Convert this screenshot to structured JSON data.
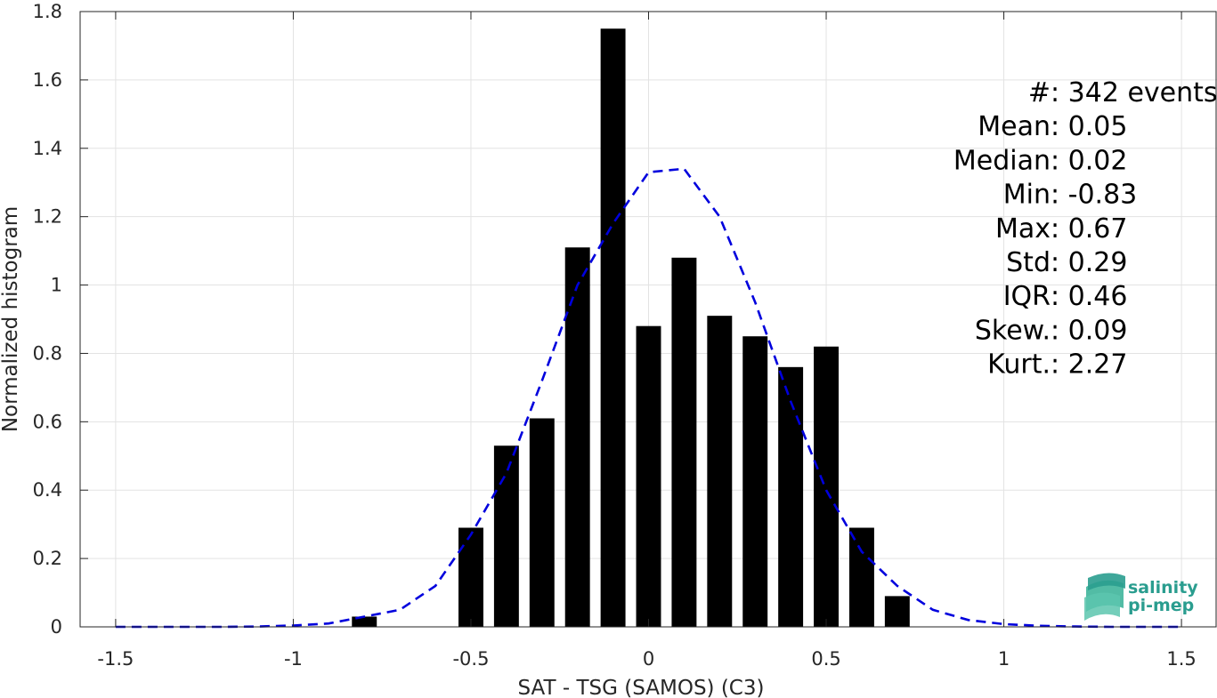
{
  "chart_data": {
    "type": "bar",
    "title": "",
    "xlabel": "SAT - TSG (SAMOS) (C3)",
    "ylabel": "Normalized histogram",
    "xlim": [
      -1.6,
      1.6
    ],
    "ylim": [
      0,
      1.8
    ],
    "grid": true,
    "x_ticks": [
      -1.5,
      -1,
      -0.5,
      0,
      0.5,
      1,
      1.5
    ],
    "x_tick_labels": [
      "-1.5",
      "-1",
      "-0.5",
      "0",
      "0.5",
      "1",
      "1.5"
    ],
    "y_ticks": [
      0,
      0.2,
      0.4,
      0.6,
      0.8,
      1,
      1.2,
      1.4,
      1.6,
      1.8
    ],
    "y_tick_labels": [
      "0",
      "0.2",
      "0.4",
      "0.6",
      "0.8",
      "1",
      "1.2",
      "1.4",
      "1.6",
      "1.8"
    ],
    "bar_color": "#000000",
    "bar_width": 0.07,
    "bars": {
      "x": [
        -0.8,
        -0.5,
        -0.4,
        -0.3,
        -0.2,
        -0.1,
        0.0,
        0.1,
        0.2,
        0.3,
        0.4,
        0.5,
        0.6,
        0.7
      ],
      "values": [
        0.03,
        0.29,
        0.53,
        0.61,
        1.11,
        1.75,
        0.88,
        1.08,
        0.91,
        0.85,
        0.76,
        0.82,
        0.29,
        0.09
      ]
    },
    "fit_curve": {
      "style": "dashed",
      "color": "#0000dd",
      "x": [
        -1.5,
        -1.4,
        -1.3,
        -1.2,
        -1.1,
        -1.0,
        -0.9,
        -0.8,
        -0.7,
        -0.6,
        -0.5,
        -0.4,
        -0.3,
        -0.2,
        -0.1,
        0.0,
        0.1,
        0.2,
        0.3,
        0.4,
        0.5,
        0.6,
        0.7,
        0.8,
        0.9,
        1.0,
        1.1,
        1.2,
        1.3,
        1.4,
        1.5
      ],
      "y": [
        0.0,
        0.0,
        0.0,
        0.0,
        0.001,
        0.004,
        0.01,
        0.03,
        0.05,
        0.12,
        0.27,
        0.45,
        0.72,
        1.0,
        1.18,
        1.33,
        1.34,
        1.2,
        0.95,
        0.66,
        0.4,
        0.22,
        0.12,
        0.05,
        0.02,
        0.008,
        0.003,
        0.001,
        0.0,
        0.0,
        0.0
      ]
    },
    "stats": [
      {
        "label": "#  ",
        "sep": " : ",
        "value": "342 events"
      },
      {
        "label": "Mean",
        "sep": " : ",
        "value": "0.05"
      },
      {
        "label": "Median",
        "sep": " : ",
        "value": "0.02"
      },
      {
        "label": "Min",
        "sep": " : ",
        "value": "-0.83"
      },
      {
        "label": "Max",
        "sep": " : ",
        "value": "0.67"
      },
      {
        "label": "Std",
        "sep": " : ",
        "value": "0.29"
      },
      {
        "label": "IQR",
        "sep": " : ",
        "value": "0.46"
      },
      {
        "label": "Skew. ",
        "sep": ": ",
        "value": "0.09"
      },
      {
        "label": "Kurt. ",
        "sep": ": ",
        "value": "2.27"
      }
    ]
  },
  "logo": {
    "line1": "salinity",
    "line2": "pi-mep",
    "color": "#2a9d8f"
  }
}
